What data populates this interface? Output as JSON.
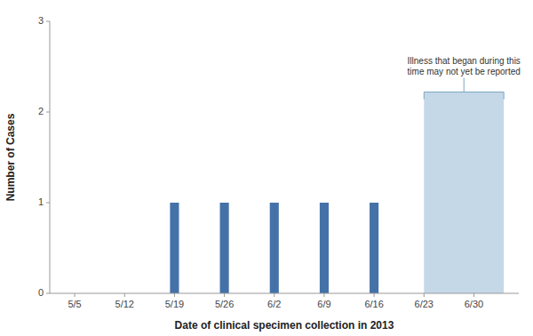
{
  "chart_data": {
    "type": "bar",
    "categories": [
      "5/5",
      "5/12",
      "5/19",
      "5/26",
      "6/2",
      "6/9",
      "6/16",
      "6/23",
      "6/30"
    ],
    "values": [
      null,
      null,
      1,
      1,
      1,
      1,
      1,
      null,
      null
    ],
    "color": "#4472a8",
    "x_label": "Date of clinical specimen collection in 2013",
    "y_label": "Number of Cases",
    "xlim": [
      -0.5,
      8.9
    ],
    "ylim": [
      0,
      3
    ],
    "yticks": [
      0,
      1,
      2,
      3
    ],
    "grid": false,
    "annotation": {
      "text": "Illness that began during this\ntime may not yet be reported",
      "x": [
        7,
        8.6
      ],
      "y": 2.22,
      "color": "#c5d8e8"
    }
  }
}
